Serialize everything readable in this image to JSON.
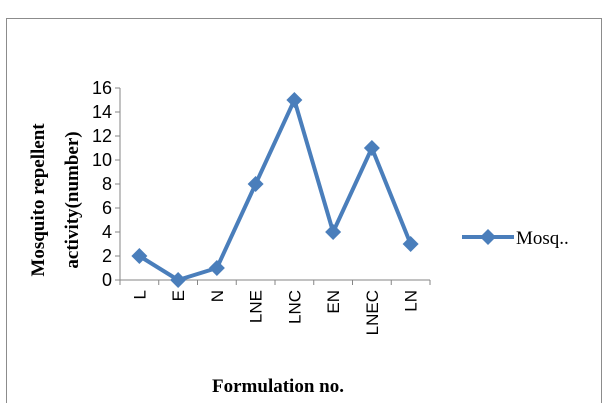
{
  "chart_data": {
    "type": "line",
    "title": "",
    "xlabel": "Formulation no.",
    "ylabel_line1": "Mosquito repellent",
    "ylabel_line2": "activity(number)",
    "categories": [
      "L",
      "E",
      "N",
      "LNE",
      "LNC",
      "EN",
      "LNEC",
      "LN"
    ],
    "series": [
      {
        "name": "Mosq..",
        "values": [
          2,
          0,
          1,
          8,
          15,
          4,
          11,
          3
        ],
        "color": "#4a7ebb"
      }
    ],
    "ylim": [
      0,
      16
    ],
    "yticks": [
      "0",
      "2",
      "4",
      "6",
      "8",
      "10",
      "12",
      "14",
      "16"
    ],
    "grid": false,
    "legend": "right"
  }
}
